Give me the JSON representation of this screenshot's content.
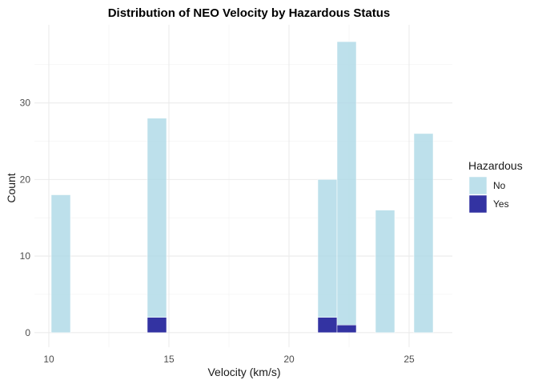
{
  "chart_data": {
    "type": "bar",
    "title": "Distribution of NEO Velocity by Hazardous Status",
    "xlabel": "Velocity (km/s)",
    "ylabel": "Count",
    "xlim": [
      9.4,
      26.8
    ],
    "ylim": [
      -1.9,
      40.2
    ],
    "x_ticks": [
      "10",
      "15",
      "20",
      "25"
    ],
    "y_ticks": [
      "0",
      "10",
      "20",
      "30"
    ],
    "grid": true,
    "stacked": true,
    "legend": {
      "title": "Hazardous",
      "position": "right",
      "entries": [
        {
          "label": "No",
          "color": "#add8e6"
        },
        {
          "label": "Yes",
          "color": "#00008b"
        }
      ]
    },
    "bin_width": 0.8,
    "series": [
      {
        "name": "No",
        "color": "#add8e6",
        "bins": [
          {
            "x": 10.5,
            "value": 18
          },
          {
            "x": 14.5,
            "value": 26
          },
          {
            "x": 21.6,
            "value": 18
          },
          {
            "x": 22.4,
            "value": 37
          },
          {
            "x": 24.0,
            "value": 16
          },
          {
            "x": 25.6,
            "value": 26
          }
        ]
      },
      {
        "name": "Yes",
        "color": "#00008b",
        "bins": [
          {
            "x": 14.5,
            "value": 2
          },
          {
            "x": 21.6,
            "value": 2
          },
          {
            "x": 22.4,
            "value": 1
          }
        ]
      }
    ]
  }
}
